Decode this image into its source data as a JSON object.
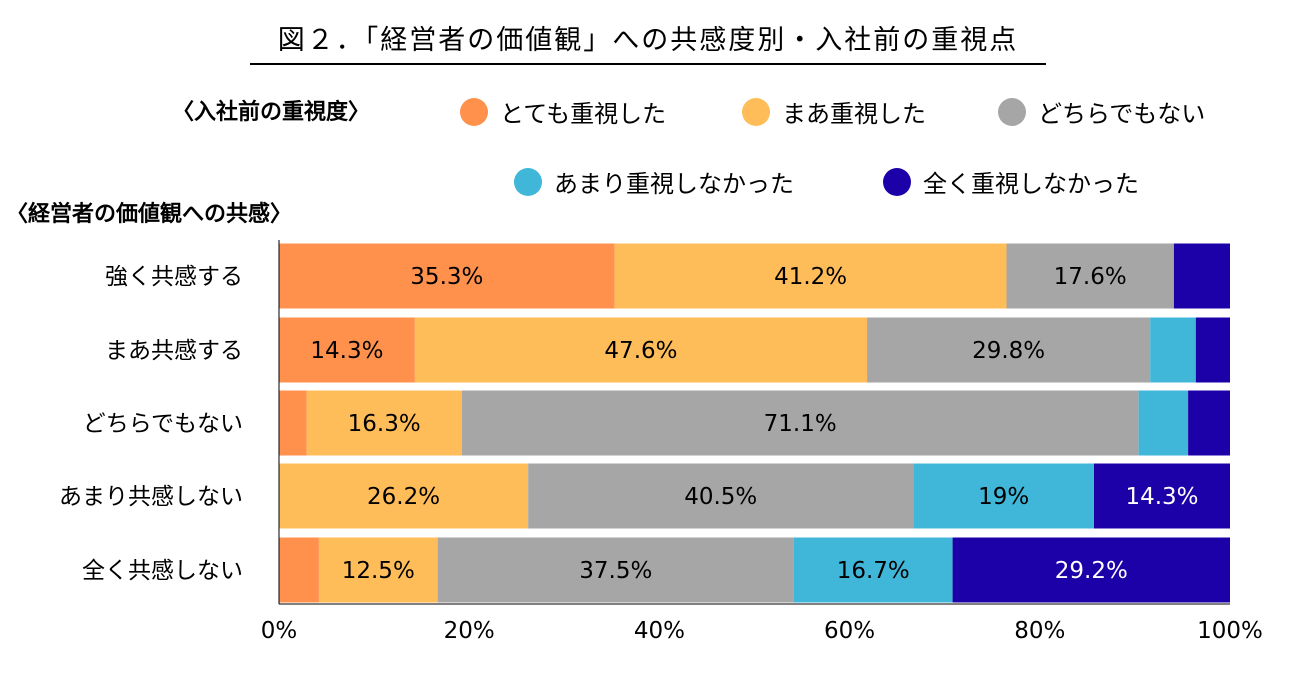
{
  "title": "図２．「経営者の価値観」への共感度別・入社前の重視点",
  "legend_heading": "〈入社前の重視度〉",
  "axis_heading": "〈経営者の価値観への共感〉",
  "chart_data": {
    "type": "bar",
    "orientation": "horizontal",
    "stacked": "percent",
    "categories": [
      "強く共感する",
      "まあ共感する",
      "どちらでもない",
      "あまり共感しない",
      "全く共感しない"
    ],
    "series": [
      {
        "name": "とても重視した",
        "color": "#FF914D",
        "values": [
          35.3,
          14.3,
          2.9,
          0,
          4.2
        ],
        "labels": [
          "35.3%",
          "14.3%",
          "",
          "",
          ""
        ]
      },
      {
        "name": "まあ重視した",
        "color": "#FFBD59",
        "values": [
          41.2,
          47.6,
          16.3,
          26.2,
          12.5
        ],
        "labels": [
          "41.2%",
          "47.6%",
          "16.3%",
          "26.2%",
          "12.5%"
        ]
      },
      {
        "name": "どちらでもない",
        "color": "#A6A6A6",
        "values": [
          17.6,
          29.8,
          71.1,
          40.5,
          37.5
        ],
        "labels": [
          "17.6%",
          "29.8%",
          "71.1%",
          "40.5%",
          "37.5%"
        ]
      },
      {
        "name": "あまり重視しなかった",
        "color": "#40B6D9",
        "values": [
          0,
          4.8,
          5.2,
          19,
          16.7
        ],
        "labels": [
          "",
          "",
          "",
          "19%",
          "16.7%"
        ]
      },
      {
        "name": "全く重視しなかった",
        "color": "#1C00A8",
        "values": [
          5.9,
          3.6,
          4.4,
          14.3,
          29.2
        ],
        "labels": [
          "",
          "",
          "",
          "14.3%",
          "29.2%"
        ]
      }
    ],
    "xlim": [
      0,
      100
    ],
    "xticks": [
      "0%",
      "20%",
      "40%",
      "60%",
      "80%",
      "100%"
    ],
    "legend_position": "top"
  }
}
